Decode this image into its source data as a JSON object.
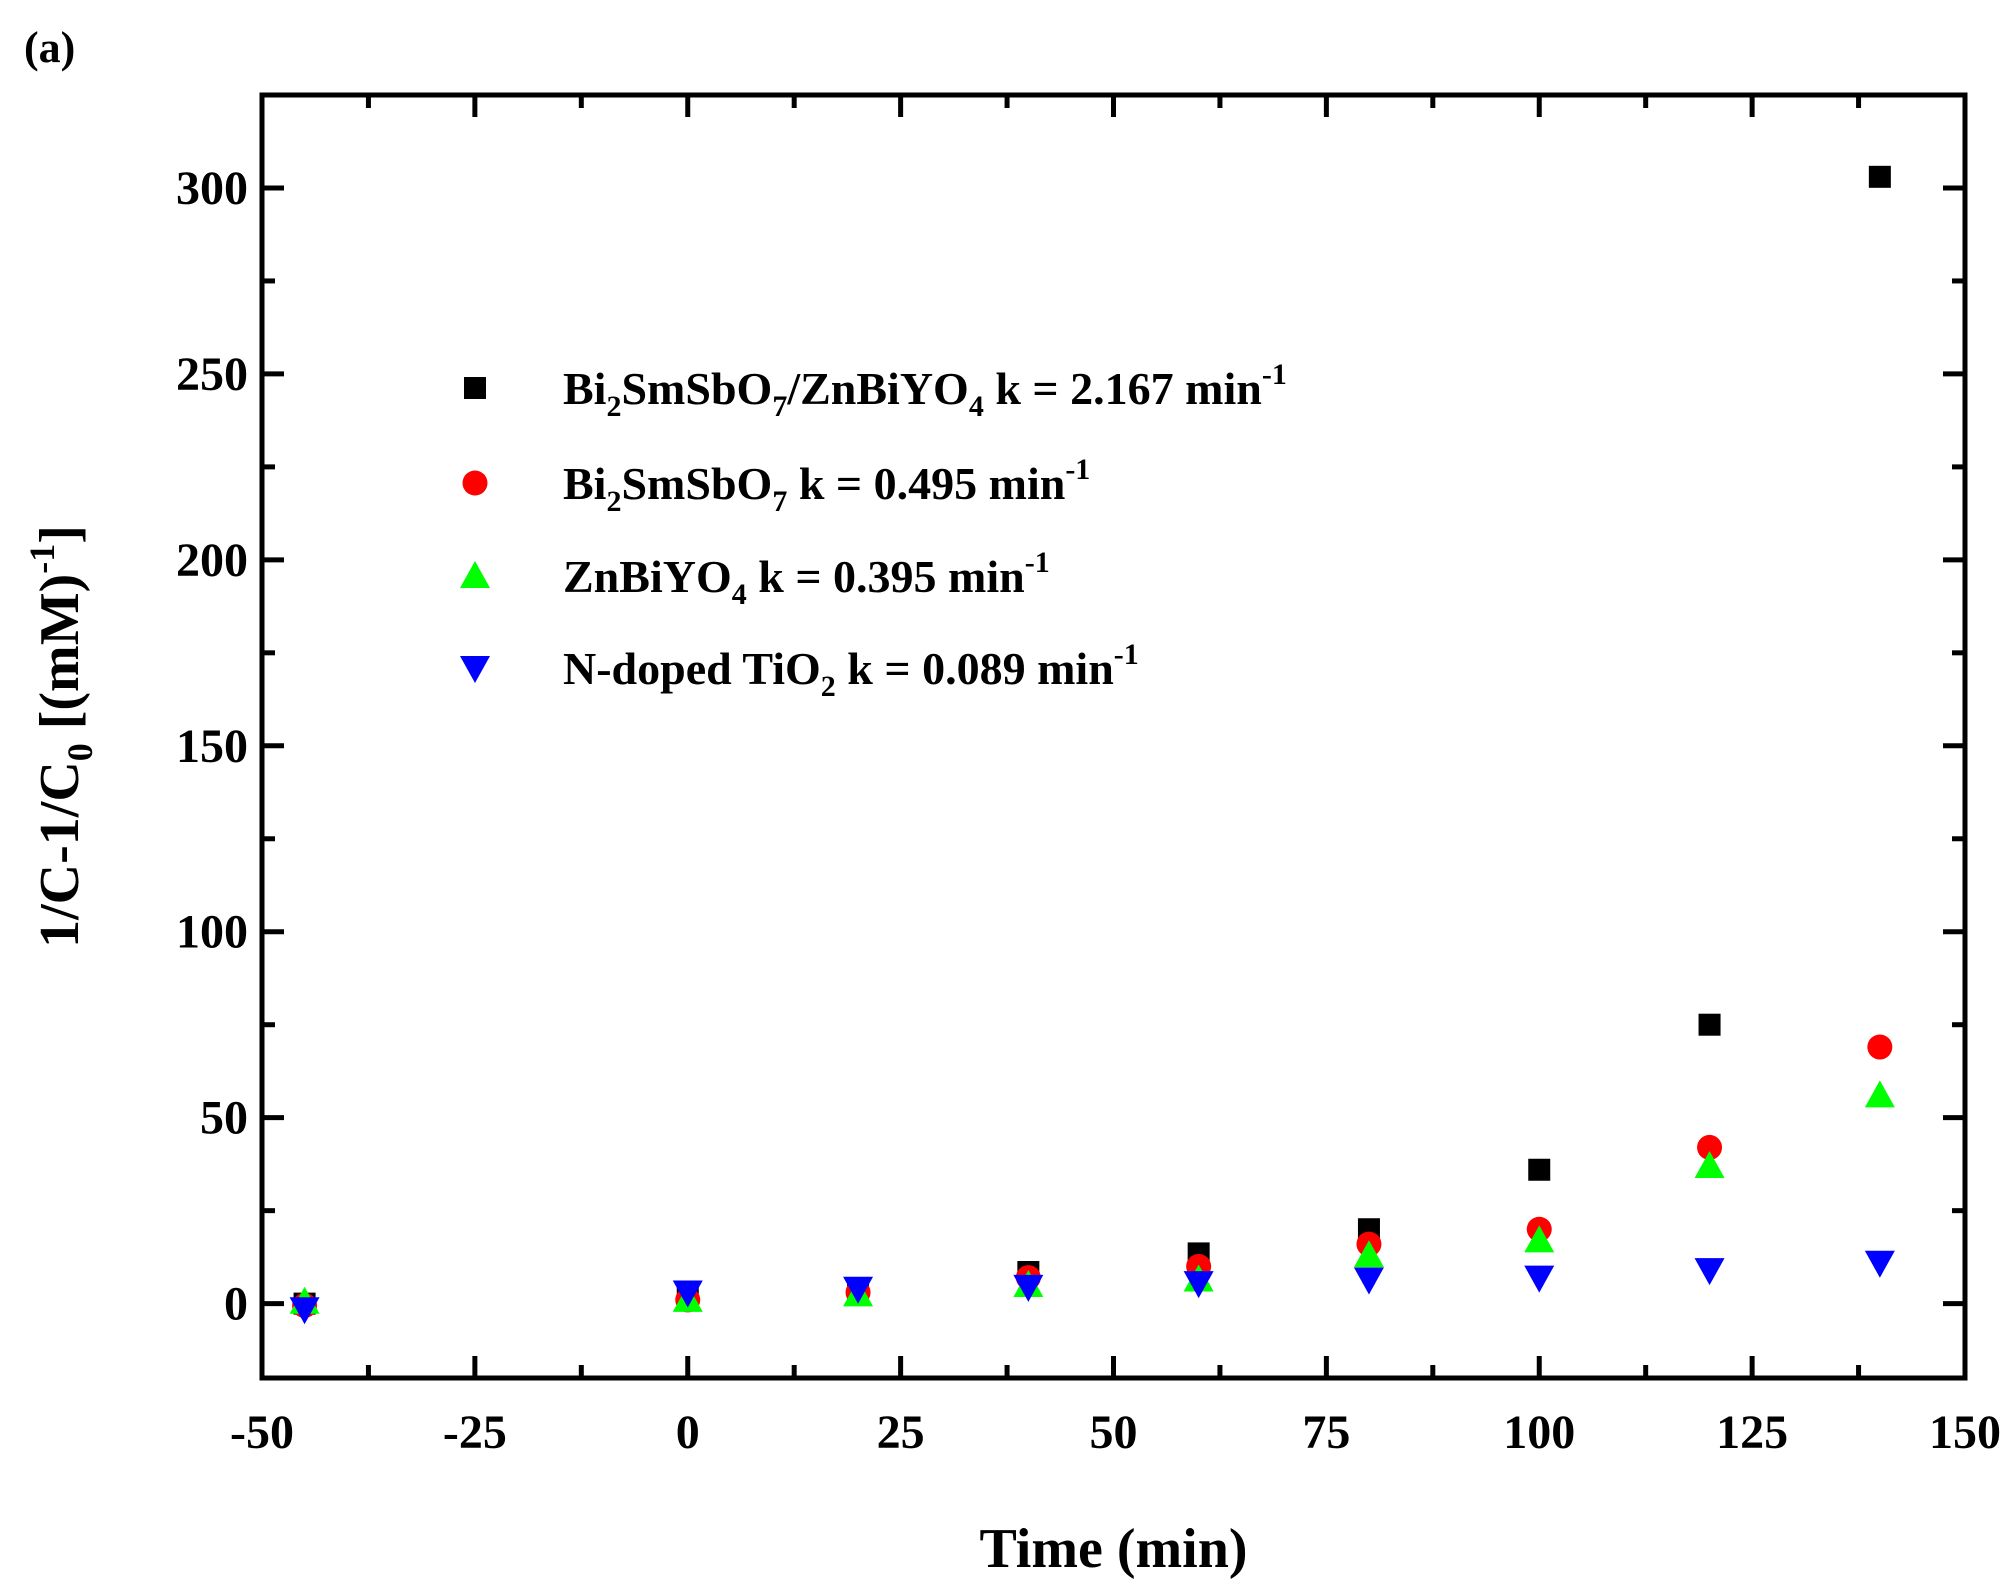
{
  "panel_label": "(a)",
  "chart_data": {
    "type": "scatter",
    "title": "",
    "xlabel": "Time (min)",
    "ylabel_parts": [
      "1/C-1/C",
      "0",
      " [(mM)",
      "-1",
      "]"
    ],
    "xlim": [
      -50,
      150
    ],
    "ylim": [
      -20,
      325
    ],
    "xticks": [
      -50,
      -25,
      0,
      25,
      50,
      75,
      100,
      125,
      150
    ],
    "yticks": [
      0,
      50,
      100,
      150,
      200,
      250,
      300
    ],
    "x_minor_step": 12.5,
    "y_minor_step": 25,
    "x": [
      -45,
      0,
      20,
      40,
      60,
      80,
      100,
      120,
      140
    ],
    "series": [
      {
        "name": "Bi2SmSbO7/ZnBiYO4 k = 2.167 min-1",
        "marker": "square",
        "color": "#000000",
        "values": [
          0,
          2,
          3.5,
          8.5,
          13.5,
          20,
          36,
          75,
          303
        ],
        "legend_parts": [
          [
            "Bi",
            "n"
          ],
          [
            "2",
            "sub"
          ],
          [
            "SmSbO",
            "n"
          ],
          [
            "7",
            "sub"
          ],
          [
            "/ZnBiYO",
            "n"
          ],
          [
            "4",
            "sub"
          ],
          [
            " k = 2.167 min",
            "n"
          ],
          [
            "-1",
            "sup"
          ]
        ]
      },
      {
        "name": "Bi2SmSbO7 k = 0.495 min-1",
        "marker": "circle",
        "color": "#ff0000",
        "values": [
          -0.5,
          1,
          3,
          7,
          10,
          16,
          20,
          42,
          69
        ],
        "legend_parts": [
          [
            "Bi",
            "n"
          ],
          [
            "2",
            "sub"
          ],
          [
            "SmSbO",
            "n"
          ],
          [
            "7",
            "sub"
          ],
          [
            " k = 0.495 min",
            "n"
          ],
          [
            "-1",
            "sup"
          ]
        ]
      },
      {
        "name": "ZnBiYO4 k = 0.395 min-1",
        "marker": "triangle-up",
        "color": "#00ff00",
        "values": [
          0.5,
          1,
          2.5,
          5,
          6.5,
          13,
          17,
          37,
          56
        ],
        "legend_parts": [
          [
            "ZnBiYO",
            "n"
          ],
          [
            "4",
            "sub"
          ],
          [
            " k = 0.395 min",
            "n"
          ],
          [
            "-1",
            "sup"
          ]
        ]
      },
      {
        "name": "N-doped TiO2 k = 0.089 min-1",
        "marker": "triangle-down",
        "color": "#0000ff",
        "values": [
          -1.5,
          3,
          4,
          4.5,
          5.5,
          6.5,
          7,
          9,
          11
        ],
        "legend_parts": [
          [
            "N-doped TiO",
            "n"
          ],
          [
            "2",
            "sub"
          ],
          [
            " k = 0.089 min",
            "n"
          ],
          [
            "-1",
            "sup"
          ]
        ]
      }
    ],
    "legend_position": "upper-left"
  }
}
